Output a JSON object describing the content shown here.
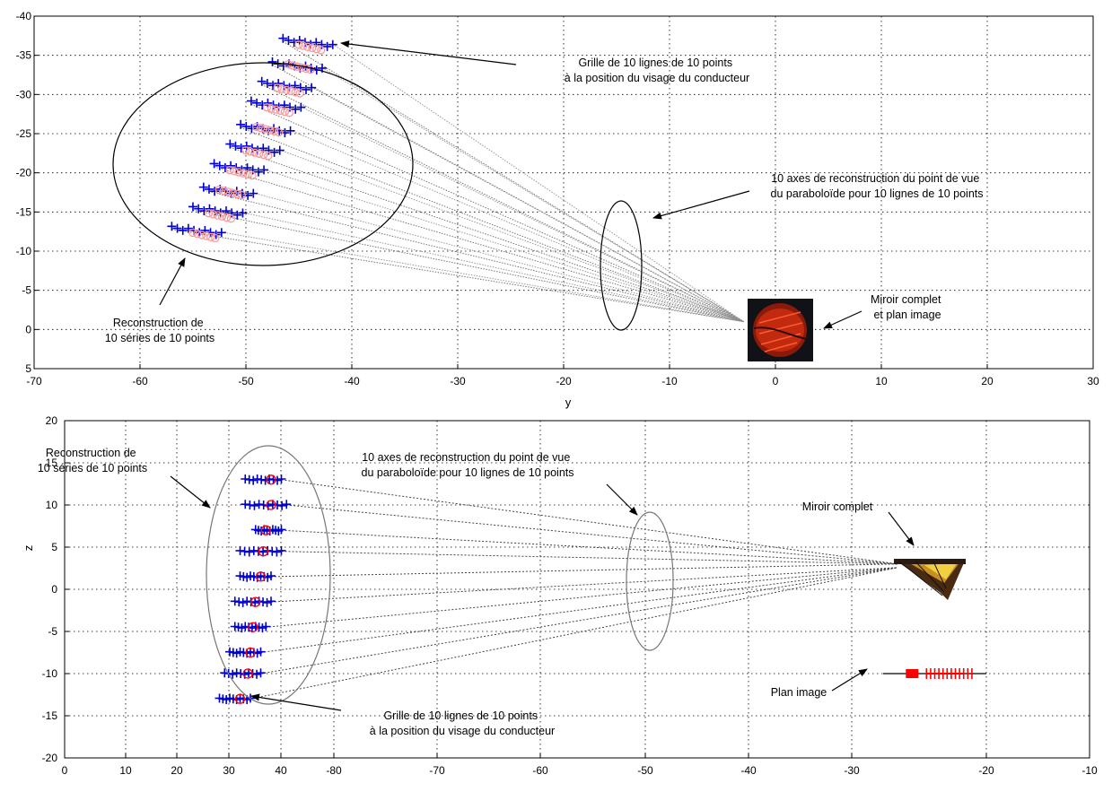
{
  "chart_data": [
    {
      "type": "scatter",
      "xlabel": "y",
      "ylabel": "",
      "xlim": [
        -70,
        30
      ],
      "ylim": [
        5,
        -40
      ],
      "xticks": [
        "-70",
        "-60",
        "-50",
        "-40",
        "-30",
        "-20",
        "-10",
        "0",
        "10",
        "20",
        "30"
      ],
      "yticks": [
        "-40",
        "-35",
        "-30",
        "-25",
        "-20",
        "-15",
        "-10",
        "-5",
        "0",
        "5"
      ],
      "grid": true,
      "series": [
        {
          "marker": "+",
          "color": "#0000cc",
          "rows": [
            {
              "y": -37.0,
              "x_start": -46.5,
              "x_end": -41.8
            },
            {
              "y": -34.0,
              "x_start": -47.5,
              "x_end": -42.8
            },
            {
              "y": -31.5,
              "x_start": -48.5,
              "x_end": -43.8
            },
            {
              "y": -29.0,
              "x_start": -49.5,
              "x_end": -44.8
            },
            {
              "y": -26.0,
              "x_start": -50.5,
              "x_end": -45.8
            },
            {
              "y": -23.5,
              "x_start": -51.5,
              "x_end": -46.8
            },
            {
              "y": -21.0,
              "x_start": -53.0,
              "x_end": -48.3
            },
            {
              "y": -18.0,
              "x_start": -54.0,
              "x_end": -49.3
            },
            {
              "y": -15.5,
              "x_start": -55.0,
              "x_end": -50.3
            },
            {
              "y": -13.0,
              "x_start": -57.0,
              "x_end": -52.3
            }
          ]
        },
        {
          "marker": "o",
          "color": "#ff9999",
          "rows": [
            {
              "y": -36.0,
              "x": -44.0
            },
            {
              "y": -33.5,
              "x": -45.0
            },
            {
              "y": -30.5,
              "x": -46.0
            },
            {
              "y": -28.0,
              "x": -47.0
            },
            {
              "y": -25.5,
              "x": -48.0
            },
            {
              "y": -22.5,
              "x": -49.0
            },
            {
              "y": -20.0,
              "x": -50.5
            },
            {
              "y": -17.5,
              "x": -51.5
            },
            {
              "y": -14.5,
              "x": -52.5
            },
            {
              "y": -12.0,
              "x": -54.0
            }
          ]
        }
      ],
      "rays_to": {
        "x": -3,
        "y": -1
      },
      "annotations": [
        {
          "lines": [
            "Grille de 10 lignes de 10 points",
            "à la position du visage du conducteur"
          ]
        },
        {
          "lines": [
            "10 axes de reconstruction du point de vue",
            "du paraboloïde pour 10 lignes de 10 points"
          ]
        },
        {
          "lines": [
            "Miroir complet",
            "et plan image"
          ]
        },
        {
          "lines": [
            "Reconstruction de",
            "10 séries de 10 points"
          ]
        }
      ]
    },
    {
      "type": "scatter",
      "xlabel": "",
      "ylabel": "z",
      "xticks": [
        "0",
        "10",
        "20",
        "30",
        "40",
        "-80",
        "-70",
        "-60",
        "-50",
        "-40",
        "-30",
        "-20",
        "-10"
      ],
      "ylim": [
        -20,
        20
      ],
      "yticks": [
        "20",
        "15",
        "10",
        "5",
        "0",
        "-5",
        "-10",
        "-15",
        "-20"
      ],
      "grid": true,
      "series": [
        {
          "marker": "+",
          "color": "#0000cc",
          "rows": [
            {
              "z": 13.0,
              "x_start": 35.0,
              "x_end": 42.0
            },
            {
              "z": 10.0,
              "x_start": 35.0,
              "x_end": 43.0
            },
            {
              "z": 7.0,
              "x_start": 37.0,
              "x_end": 42.0
            },
            {
              "z": 4.5,
              "x_start": 34.0,
              "x_end": 42.0
            },
            {
              "z": 1.5,
              "x_start": 34.0,
              "x_end": 40.0
            },
            {
              "z": -1.5,
              "x_start": 33.0,
              "x_end": 40.0
            },
            {
              "z": -4.5,
              "x_start": 33.0,
              "x_end": 39.0
            },
            {
              "z": -7.5,
              "x_start": 32.0,
              "x_end": 38.0
            },
            {
              "z": -10.0,
              "x_start": 31.0,
              "x_end": 38.0
            },
            {
              "z": -13.0,
              "x_start": 30.0,
              "x_end": 36.0
            }
          ]
        },
        {
          "marker": "o",
          "color": "#ff0000",
          "rows": [
            {
              "z": 13.0,
              "x": 40.0
            },
            {
              "z": 10.0,
              "x": 40.0
            },
            {
              "z": 7.0,
              "x": 39.0
            },
            {
              "z": 4.5,
              "x": 38.5
            },
            {
              "z": 1.5,
              "x": 38.0
            },
            {
              "z": -1.5,
              "x": 37.0
            },
            {
              "z": -4.5,
              "x": 36.5
            },
            {
              "z": -7.5,
              "x": 36.0
            },
            {
              "z": -10.0,
              "x": 35.5
            },
            {
              "z": -13.0,
              "x": 34.0
            }
          ]
        }
      ],
      "image_plane_z": -10,
      "annotations": [
        {
          "lines": [
            "Reconstruction de",
            "10 séries de 10 points"
          ]
        },
        {
          "lines": [
            "10 axes de reconstruction du point de vue",
            "du paraboloïde pour 10 lignes de 10 points"
          ]
        },
        {
          "lines": [
            "Miroir complet"
          ]
        },
        {
          "lines": [
            "Plan image"
          ]
        },
        {
          "lines": [
            "Grille de 10 lignes de 10 points",
            "à la position du visage du conducteur"
          ]
        }
      ]
    }
  ]
}
